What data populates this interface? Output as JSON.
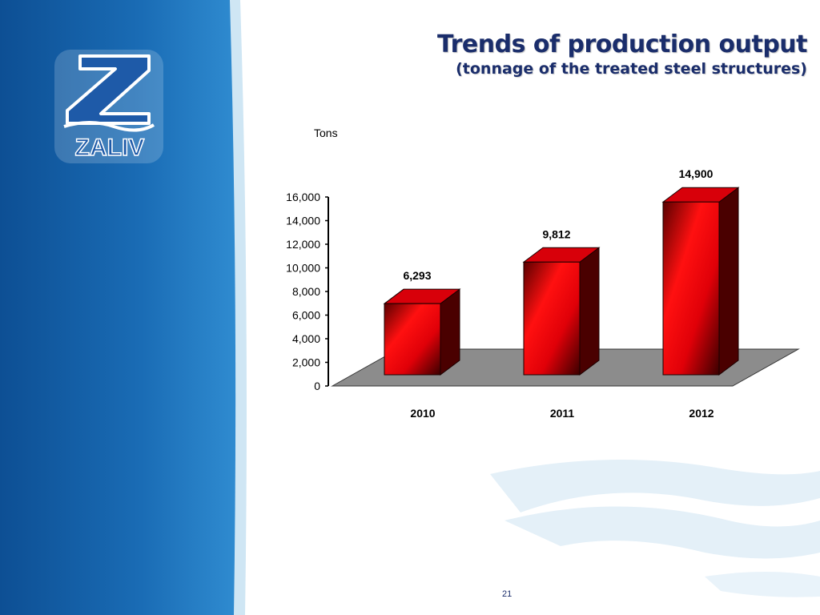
{
  "slide": {
    "title": "Trends of production output",
    "subtitle": "(tonnage of the treated steel structures)",
    "page_number": "21",
    "logo_text": "ZALIV",
    "colors": {
      "brand_blue": "#1c6fb8",
      "title_navy": "#1a2d6b",
      "bar_red": "#e8000a",
      "floor_gray": "#8c8c8c"
    }
  },
  "chart_data": {
    "type": "bar",
    "categories": [
      "2010",
      "2011",
      "2012"
    ],
    "values": [
      6293,
      9812,
      14900
    ],
    "data_labels": [
      "6,293",
      "9,812",
      "14,900"
    ],
    "ylabel": "Tons",
    "ylim": [
      0,
      16000
    ],
    "yticks": [
      0,
      2000,
      4000,
      6000,
      8000,
      10000,
      12000,
      14000,
      16000
    ],
    "ytick_labels": [
      "0",
      "2,000",
      "4,000",
      "6,000",
      "8,000",
      "10,000",
      "12,000",
      "14,000",
      "16,000"
    ],
    "grid": false,
    "style": "3d"
  }
}
